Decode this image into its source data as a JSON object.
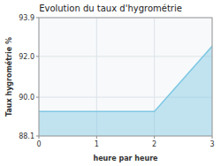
{
  "chart_data": {
    "type": "area",
    "title": "Evolution du taux d'hygrométrie",
    "x_label": "heure par heure",
    "y_label": "Taux hygrométrie %",
    "x": [
      0,
      1,
      2,
      3
    ],
    "values": [
      89.3,
      89.3,
      89.3,
      92.5
    ],
    "color": "#7ec8e3",
    "xlim": [
      0,
      3
    ],
    "ylim": [
      88.1,
      93.9
    ],
    "xticks": [
      0,
      1,
      2,
      3
    ],
    "yticks": [
      88.1,
      {
        "value": 90.0,
        "label": "90.0"
      },
      {
        "value": 92.0,
        "label": "92.0"
      },
      93.9
    ],
    "grid": true
  }
}
